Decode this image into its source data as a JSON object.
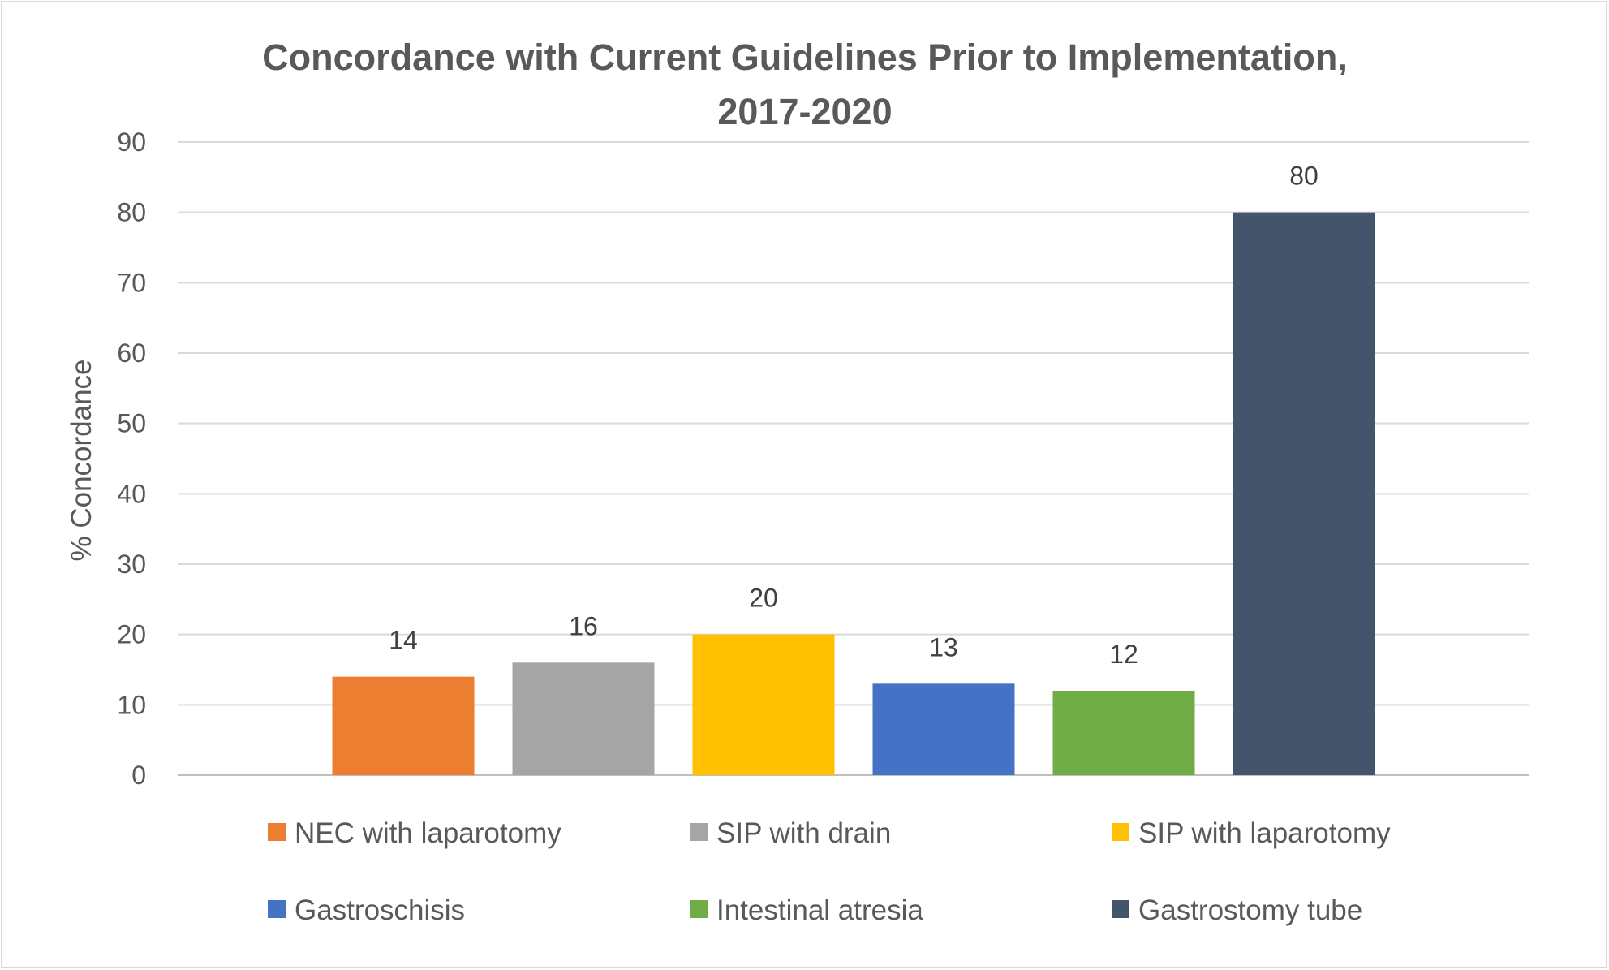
{
  "chart_data": {
    "type": "bar",
    "title_lines": [
      "Concordance with Current Guidelines Prior to Implementation,",
      "2017-2020"
    ],
    "xlabel": "",
    "ylabel": "% Concordance",
    "ylim": [
      0,
      90
    ],
    "yticks": [
      "0",
      "10",
      "20",
      "30",
      "40",
      "50",
      "60",
      "70",
      "80",
      "90"
    ],
    "grid": true,
    "legend_position": "bottom",
    "categories": [
      "NEC with laparotomy",
      "SIP with drain",
      "SIP with laparotomy",
      "Gastroschisis",
      "Intestinal atresia",
      "Gastrostomy tube"
    ],
    "values": [
      14,
      16,
      20,
      13,
      12,
      80
    ],
    "colors": [
      "#ED7D31",
      "#A5A5A5",
      "#FFC000",
      "#4472C4",
      "#70AD47",
      "#44546A"
    ]
  }
}
